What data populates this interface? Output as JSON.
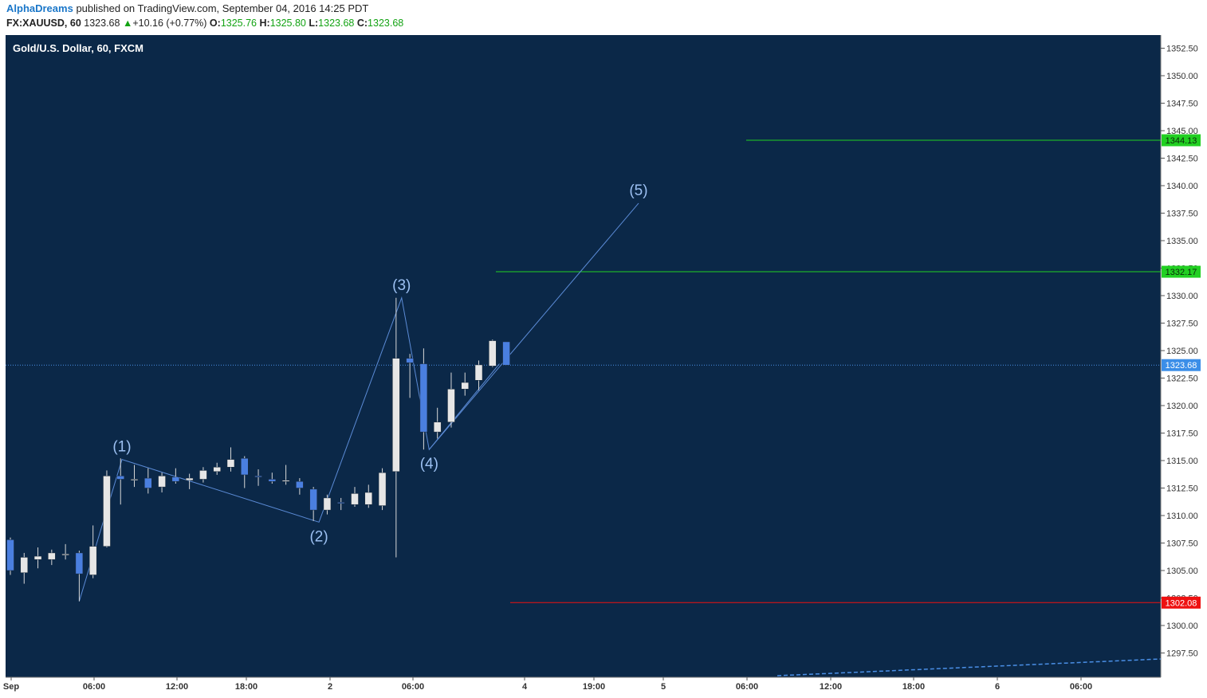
{
  "header": {
    "author": "AlphaDreams",
    "published_text": "published on TradingView.com, September 04, 2016 14:25 PDT",
    "symbol": "FX:XAUUSD, 60",
    "last": "1323.68",
    "change": "+10.16 (+0.77%)",
    "o_label": "O:",
    "o_value": "1325.76",
    "h_label": "H:",
    "h_value": "1325.80",
    "l_label": "L:",
    "l_value": "1323.68",
    "c_label": "C:",
    "c_value": "1323.68"
  },
  "colors": {
    "background": "#0b2848",
    "up_candle": "#e6e6e6",
    "down_candle": "#4a7fe0",
    "wave_line": "#5b8bd6",
    "level_green": "#22d022",
    "level_red": "#ee1111",
    "price_line": "#4a8fe6"
  },
  "chart_data": {
    "type": "candlestick",
    "title": "Gold/U.S. Dollar, 60, FXCM",
    "ylim": [
      1295,
      1353.5
    ],
    "y_ticks": [
      "1352.50",
      "1350.00",
      "1347.50",
      "1345.00",
      "1342.50",
      "1340.00",
      "1337.50",
      "1335.00",
      "1332.50",
      "1330.00",
      "1327.50",
      "1325.00",
      "1322.50",
      "1320.00",
      "1317.50",
      "1315.00",
      "1312.50",
      "1310.00",
      "1307.50",
      "1305.00",
      "1302.50",
      "1300.00",
      "1297.50"
    ],
    "x_ticks": [
      "Sep",
      "06:00",
      "12:00",
      "18:00",
      "2",
      "06:00",
      "4",
      "19:00",
      "5",
      "06:00",
      "12:00",
      "18:00",
      "6",
      "06:00"
    ],
    "candles": [
      {
        "o": 1307.8,
        "h": 1308.0,
        "l": 1304.6,
        "c": 1305.0
      },
      {
        "o": 1304.8,
        "h": 1306.6,
        "l": 1303.8,
        "c": 1306.2
      },
      {
        "o": 1306.0,
        "h": 1307.1,
        "l": 1305.2,
        "c": 1306.3
      },
      {
        "o": 1306.0,
        "h": 1306.9,
        "l": 1305.5,
        "c": 1306.6
      },
      {
        "o": 1306.4,
        "h": 1307.4,
        "l": 1306.0,
        "c": 1306.5
      },
      {
        "o": 1306.6,
        "h": 1306.8,
        "l": 1302.2,
        "c": 1304.7
      },
      {
        "o": 1304.6,
        "h": 1309.1,
        "l": 1304.3,
        "c": 1307.2
      },
      {
        "o": 1307.2,
        "h": 1314.1,
        "l": 1307.1,
        "c": 1313.6
      },
      {
        "o": 1313.6,
        "h": 1315.2,
        "l": 1311.0,
        "c": 1313.3
      },
      {
        "o": 1313.2,
        "h": 1314.6,
        "l": 1312.6,
        "c": 1313.3
      },
      {
        "o": 1313.4,
        "h": 1314.3,
        "l": 1312.0,
        "c": 1312.5
      },
      {
        "o": 1312.6,
        "h": 1313.9,
        "l": 1312.1,
        "c": 1313.6
      },
      {
        "o": 1313.5,
        "h": 1314.3,
        "l": 1312.9,
        "c": 1313.1
      },
      {
        "o": 1313.2,
        "h": 1313.8,
        "l": 1312.4,
        "c": 1313.4
      },
      {
        "o": 1313.3,
        "h": 1314.4,
        "l": 1313.0,
        "c": 1314.1
      },
      {
        "o": 1314.0,
        "h": 1314.8,
        "l": 1313.7,
        "c": 1314.4
      },
      {
        "o": 1314.4,
        "h": 1316.2,
        "l": 1314.0,
        "c": 1315.1
      },
      {
        "o": 1315.2,
        "h": 1315.4,
        "l": 1312.5,
        "c": 1313.7
      },
      {
        "o": 1313.6,
        "h": 1314.2,
        "l": 1312.7,
        "c": 1313.5
      },
      {
        "o": 1313.3,
        "h": 1313.9,
        "l": 1312.9,
        "c": 1313.1
      },
      {
        "o": 1313.1,
        "h": 1314.6,
        "l": 1312.8,
        "c": 1313.2
      },
      {
        "o": 1313.1,
        "h": 1313.4,
        "l": 1311.9,
        "c": 1312.5
      },
      {
        "o": 1312.4,
        "h": 1312.6,
        "l": 1309.5,
        "c": 1310.5
      },
      {
        "o": 1310.5,
        "h": 1311.9,
        "l": 1310.1,
        "c": 1311.6
      },
      {
        "o": 1311.2,
        "h": 1311.6,
        "l": 1310.5,
        "c": 1311.1
      },
      {
        "o": 1311.0,
        "h": 1312.6,
        "l": 1310.8,
        "c": 1312.0
      },
      {
        "o": 1311.0,
        "h": 1312.8,
        "l": 1310.7,
        "c": 1312.1
      },
      {
        "o": 1310.9,
        "h": 1314.3,
        "l": 1310.5,
        "c": 1313.9
      },
      {
        "o": 1314.0,
        "h": 1329.8,
        "l": 1306.2,
        "c": 1324.3
      },
      {
        "o": 1324.3,
        "h": 1324.7,
        "l": 1320.7,
        "c": 1323.9
      },
      {
        "o": 1323.8,
        "h": 1325.2,
        "l": 1316.0,
        "c": 1317.6
      },
      {
        "o": 1317.6,
        "h": 1319.8,
        "l": 1317.0,
        "c": 1318.5
      },
      {
        "o": 1318.5,
        "h": 1323.0,
        "l": 1318.0,
        "c": 1321.5
      },
      {
        "o": 1321.5,
        "h": 1323.0,
        "l": 1320.9,
        "c": 1322.1
      },
      {
        "o": 1322.3,
        "h": 1324.1,
        "l": 1321.4,
        "c": 1323.7
      },
      {
        "o": 1323.6,
        "h": 1326.0,
        "l": 1323.5,
        "c": 1325.9
      },
      {
        "o": 1325.8,
        "h": 1325.8,
        "l": 1323.68,
        "c": 1323.68
      }
    ],
    "wave_labels": [
      {
        "label": "(1)",
        "price": 1315.1
      },
      {
        "label": "(2)",
        "price": 1309.4
      },
      {
        "label": "(3)",
        "price": 1329.8
      },
      {
        "label": "(4)",
        "price": 1316.0
      },
      {
        "label": "(5)",
        "price": 1338.4
      }
    ],
    "levels": [
      {
        "price": 1344.13,
        "label": "1344.13",
        "color": "#22d022"
      },
      {
        "price": 1332.17,
        "label": "1332.17",
        "color": "#22d022"
      },
      {
        "price": 1302.08,
        "label": "1302.08",
        "color": "#ee1111"
      }
    ],
    "last_price": {
      "price": 1323.68,
      "label": "1323.68"
    }
  }
}
